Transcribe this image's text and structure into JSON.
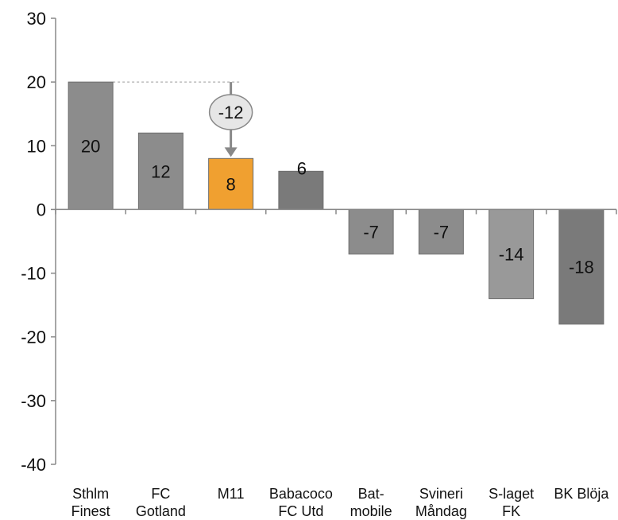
{
  "chart_data": {
    "type": "bar",
    "categories": [
      [
        "Sthlm",
        "Finest"
      ],
      [
        "FC",
        "Gotland"
      ],
      [
        "M11"
      ],
      [
        "Babacoco",
        "FC Utd"
      ],
      [
        "Bat-",
        "mobile"
      ],
      [
        "Svineri",
        "Måndag"
      ],
      [
        "S-laget",
        "FK"
      ],
      [
        "BK Blöja"
      ]
    ],
    "values": [
      20,
      12,
      8,
      6,
      -7,
      -7,
      -14,
      -18
    ],
    "value_labels": [
      "20",
      "12",
      "8",
      "",
      "-7",
      "-7",
      "-14",
      "-18"
    ],
    "value_labels_above": [
      "",
      "",
      "",
      "6",
      "",
      "",
      "",
      ""
    ],
    "ylim": [
      -40,
      30
    ],
    "yticks": [
      "30",
      "20",
      "10",
      "0",
      "-10",
      "-20",
      "-30",
      "-40"
    ],
    "ytick_values": [
      30,
      20,
      10,
      0,
      -10,
      -20,
      -30,
      -40
    ],
    "highlight_index": 2,
    "colors": {
      "bars": [
        "#8c8c8c",
        "#8c8c8c",
        "#f0a030",
        "#7a7a7a",
        "#8c8c8c",
        "#8c8c8c",
        "#999999",
        "#7a7a7a"
      ],
      "highlight": "#f0a030",
      "axis": "#888888",
      "annotation_fill": "#e6e6e6",
      "annotation_stroke": "#888888"
    },
    "annotation": {
      "label": "-12",
      "from_value": 20,
      "to_value": 8,
      "reference_index": 0,
      "target_index": 2
    },
    "grid": false
  }
}
